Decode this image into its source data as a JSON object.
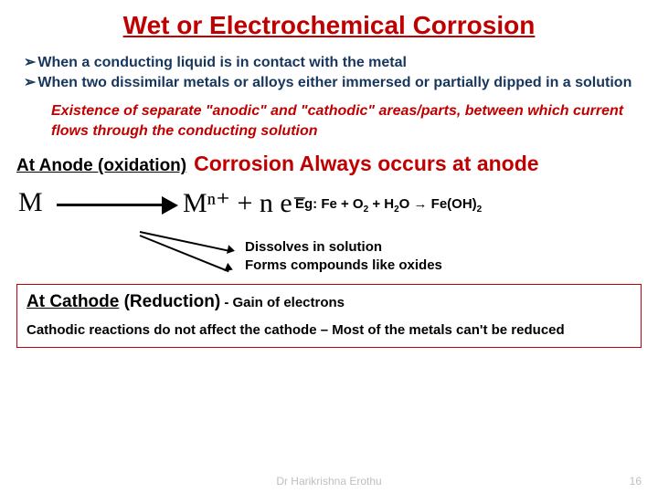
{
  "title": "Wet or Electrochemical Corrosion",
  "bullets": [
    "When a conducting liquid is in contact with the metal",
    "When two dissimilar metals or alloys either immersed or partially dipped in a solution"
  ],
  "redItalic": "Existence of separate \"anodic\" and \"cathodic\" areas/parts, between which current flows through the conducting solution",
  "anodeLabel": "At Anode (oxidation)",
  "anodeText": "Corrosion Always occurs at anode",
  "equation": {
    "left": "M",
    "right": "Mⁿ⁺ + n e⁻"
  },
  "egPrefix": "Eg:  Fe + O",
  "egMid": "  + H",
  "egArrow": "O  → Fe(OH)",
  "dissolve1": "Dissolves in solution",
  "dissolve2": "Forms compounds like oxides",
  "cathodeLabel1": "At Cathode",
  "cathodeLabel2": " (Reduction)",
  "cathodeGain": " - Gain of electrons",
  "cathodeText": "Cathodic reactions do not affect the cathode – Most of the metals can't be reduced",
  "footer": "Dr Harikrishna Erothu",
  "page": "16",
  "colors": {
    "red": "#c00000",
    "navy": "#17365d",
    "grey": "#bfbfbf"
  }
}
